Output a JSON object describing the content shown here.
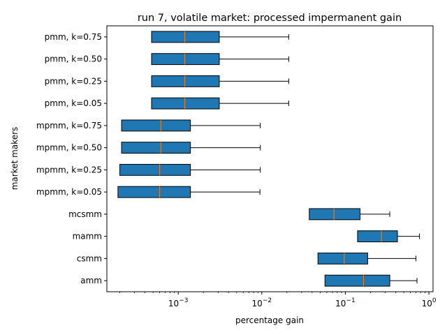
{
  "chart_data": {
    "type": "boxplot",
    "orientation": "horizontal",
    "title": "run 7, volatile market: processed impermanent gain",
    "xlabel": "percentage gain",
    "ylabel": "market makers",
    "xscale": "log",
    "xlim": [
      0.00014,
      1.12
    ],
    "xticks": [
      {
        "value": 0.001,
        "base": "10",
        "exp": "−3"
      },
      {
        "value": 0.01,
        "base": "10",
        "exp": "−2"
      },
      {
        "value": 0.1,
        "base": "10",
        "exp": "−1"
      },
      {
        "value": 1,
        "base": "10",
        "exp": "0"
      }
    ],
    "grid": false,
    "box_color": "#1f77b4",
    "median_color": "#ff7f0e",
    "categories": [
      "amm",
      "csmm",
      "mamm",
      "mcsmm",
      "mpmm, k=0.05",
      "mpmm, k=0.25",
      "mpmm, k=0.50",
      "mpmm, k=0.75",
      "pmm, k=0.05",
      "pmm, k=0.25",
      "pmm, k=0.50",
      "pmm, k=0.75"
    ],
    "boxes": [
      {
        "q1": 0.057,
        "median": 0.165,
        "q3": 0.34,
        "whisker_high": 0.72
      },
      {
        "q1": 0.047,
        "median": 0.097,
        "q3": 0.185,
        "whisker_high": 0.7
      },
      {
        "q1": 0.14,
        "median": 0.27,
        "q3": 0.42,
        "whisker_high": 0.77
      },
      {
        "q1": 0.037,
        "median": 0.073,
        "q3": 0.15,
        "whisker_high": 0.34
      },
      {
        "q1": 0.00019,
        "median": 0.0006,
        "q3": 0.0014,
        "whisker_high": 0.0095
      },
      {
        "q1": 0.0002,
        "median": 0.0006,
        "q3": 0.0014,
        "whisker_high": 0.0096
      },
      {
        "q1": 0.00021,
        "median": 0.00062,
        "q3": 0.0014,
        "whisker_high": 0.0096
      },
      {
        "q1": 0.00021,
        "median": 0.00062,
        "q3": 0.0014,
        "whisker_high": 0.0096
      },
      {
        "q1": 0.00048,
        "median": 0.0012,
        "q3": 0.0031,
        "whisker_high": 0.021
      },
      {
        "q1": 0.00048,
        "median": 0.0012,
        "q3": 0.0031,
        "whisker_high": 0.021
      },
      {
        "q1": 0.00048,
        "median": 0.0012,
        "q3": 0.0031,
        "whisker_high": 0.021
      },
      {
        "q1": 0.00048,
        "median": 0.0012,
        "q3": 0.0031,
        "whisker_high": 0.021
      }
    ]
  }
}
